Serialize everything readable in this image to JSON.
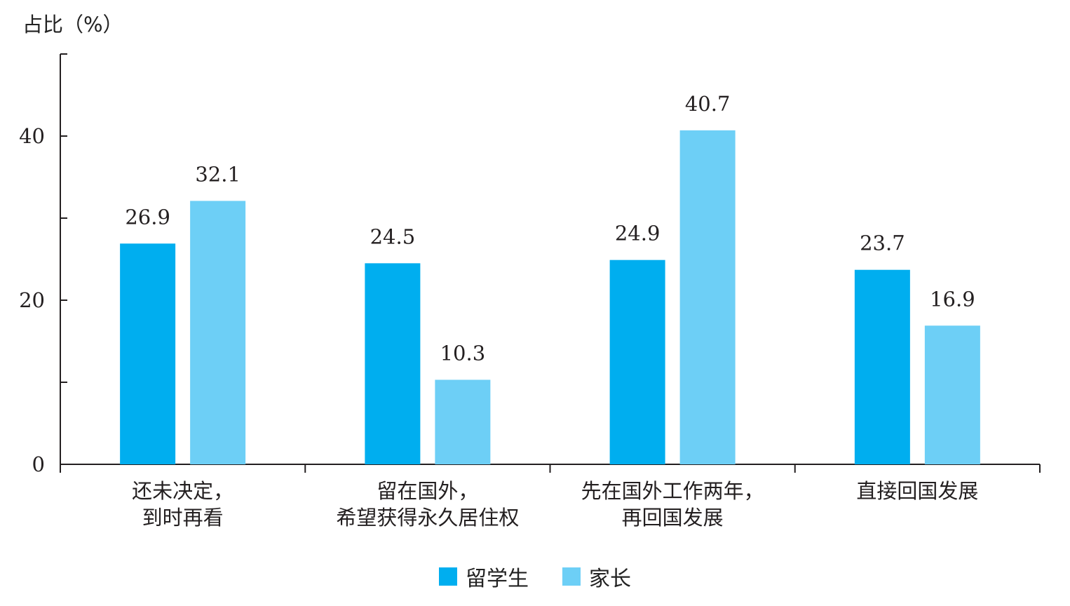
{
  "chart_data": {
    "type": "bar",
    "ylabel": "占比（%）",
    "ylim": [
      0,
      50
    ],
    "yticks": [
      0,
      20,
      40
    ],
    "categories": [
      [
        "还未决定，",
        "到时再看"
      ],
      [
        "留在国外，",
        "希望获得永久居住权"
      ],
      [
        "先在国外工作两年，",
        "再回国发展"
      ],
      [
        "直接回国发展"
      ]
    ],
    "series": [
      {
        "name": "留学生",
        "color": "#00aeef",
        "values": [
          26.9,
          24.5,
          24.9,
          23.7
        ]
      },
      {
        "name": "家长",
        "color": "#6dcff6",
        "values": [
          32.1,
          10.3,
          40.7,
          16.9
        ]
      }
    ],
    "legend": "bottom-center",
    "grid": false
  }
}
